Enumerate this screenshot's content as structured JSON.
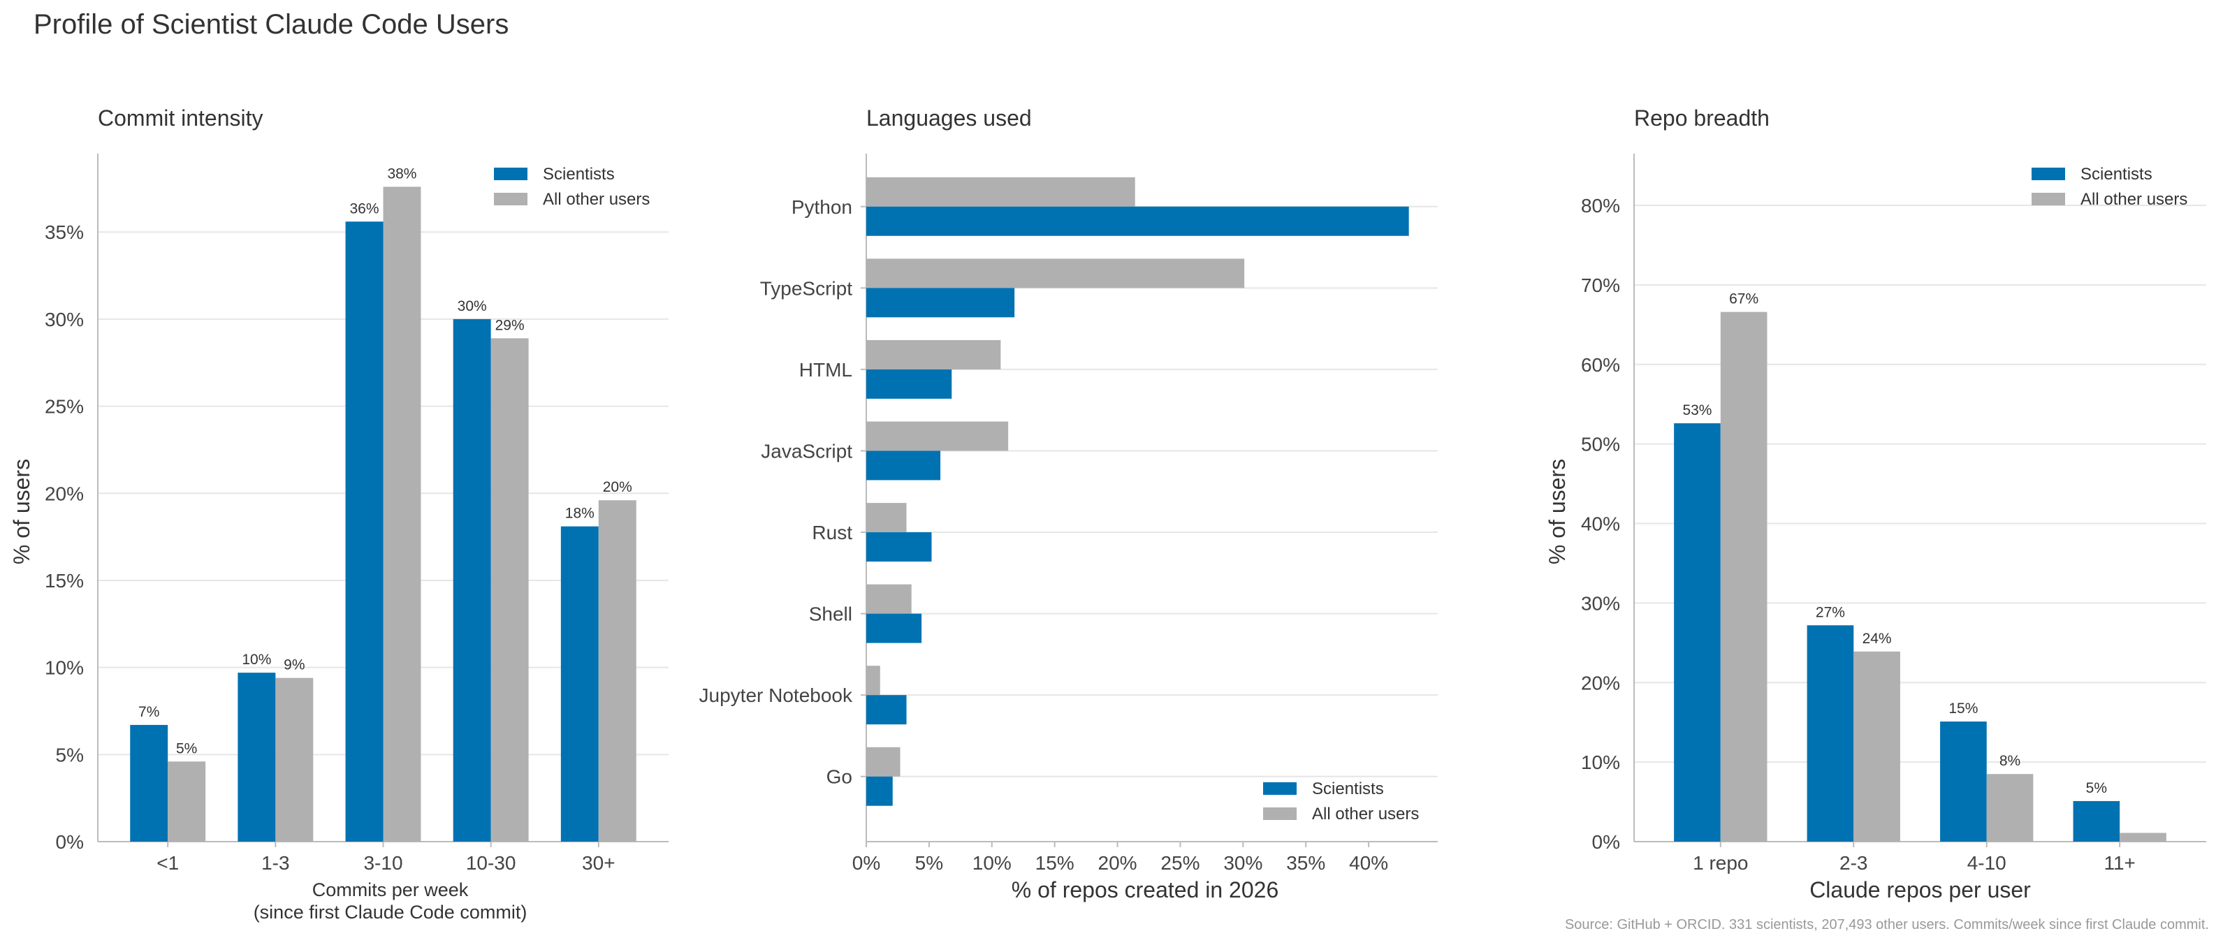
{
  "title": "Profile of Scientist Claude Code Users",
  "source": "Source: GitHub + ORCID. 331 scientists, 207,493 other users. Commits/week since first Claude commit.",
  "colors": {
    "scientists": "#0072b2",
    "others": "#b0b0b0"
  },
  "legend": {
    "scientists": "Scientists",
    "others": "All other users"
  },
  "chart_data": [
    {
      "id": "commit",
      "type": "bar",
      "title": "Commit intensity",
      "xlabel": [
        "Commits per week",
        "(since first Claude Code commit)"
      ],
      "ylabel": "% of users",
      "categories": [
        "<1",
        "1-3",
        "3-10",
        "10-30",
        "30+"
      ],
      "series": [
        {
          "name": "Scientists",
          "values": [
            6.7,
            9.7,
            35.6,
            30.0,
            18.1
          ],
          "labels": [
            "7%",
            "10%",
            "36%",
            "30%",
            "18%"
          ]
        },
        {
          "name": "All other users",
          "values": [
            4.6,
            9.4,
            37.6,
            28.9,
            19.6
          ],
          "labels": [
            "5%",
            "9%",
            "38%",
            "29%",
            "20%"
          ]
        }
      ],
      "ylim": [
        0,
        39.5
      ],
      "yticks": [
        0,
        5,
        10,
        15,
        20,
        25,
        30,
        35
      ],
      "ytick_labels": [
        "0%",
        "5%",
        "10%",
        "15%",
        "20%",
        "25%",
        "30%",
        "35%"
      ],
      "legend_position": "top-right"
    },
    {
      "id": "lang",
      "type": "hbar",
      "title": "Languages used",
      "xlabel": "% of repos created in 2026",
      "categories": [
        "Python",
        "TypeScript",
        "HTML",
        "JavaScript",
        "Rust",
        "Shell",
        "Jupyter Notebook",
        "Go"
      ],
      "series": [
        {
          "name": "Scientists",
          "values": [
            43.2,
            11.8,
            6.8,
            5.9,
            5.2,
            4.4,
            3.2,
            2.1
          ]
        },
        {
          "name": "All other users",
          "values": [
            21.4,
            30.1,
            10.7,
            11.3,
            3.2,
            3.6,
            1.1,
            2.7
          ]
        }
      ],
      "xlim": [
        0,
        45.5
      ],
      "xticks": [
        0,
        5,
        10,
        15,
        20,
        25,
        30,
        35,
        40
      ],
      "xtick_labels": [
        "0%",
        "5%",
        "10%",
        "15%",
        "20%",
        "25%",
        "30%",
        "35%",
        "40%"
      ],
      "legend_position": "bottom-right"
    },
    {
      "id": "repo",
      "type": "bar",
      "title": "Repo breadth",
      "xlabel": [
        "Claude repos per user"
      ],
      "ylabel": "% of users",
      "categories": [
        "1 repo",
        "2-3",
        "4-10",
        "11+"
      ],
      "series": [
        {
          "name": "Scientists",
          "values": [
            52.6,
            27.2,
            15.1,
            5.1
          ],
          "labels": [
            "53%",
            "27%",
            "15%",
            "5%"
          ]
        },
        {
          "name": "All other users",
          "values": [
            66.6,
            23.9,
            8.5,
            1.1
          ],
          "labels": [
            "67%",
            "24%",
            "8%",
            ""
          ]
        }
      ],
      "ylim": [
        0,
        86.5
      ],
      "yticks": [
        0,
        10,
        20,
        30,
        40,
        50,
        60,
        70,
        80
      ],
      "ytick_labels": [
        "0%",
        "10%",
        "20%",
        "30%",
        "40%",
        "50%",
        "60%",
        "70%",
        "80%"
      ],
      "legend_position": "top-right"
    }
  ]
}
